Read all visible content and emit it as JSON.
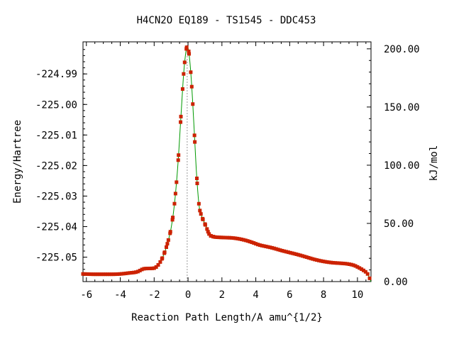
{
  "chart_data": {
    "type": "line",
    "title": "H4CN2O    EQ189 - TS1545 - DDC453",
    "xlabel": "Reaction Path Length/A amu^{1/2}",
    "ylabel": "Energy/Hartree",
    "y2label": "kJ/mol",
    "xlim": [
      -6.2,
      10.8
    ],
    "ylim": [
      -225.058,
      -224.9795
    ],
    "y2lim": [
      0,
      206.0
    ],
    "x_ticks": [
      -6,
      -4,
      -2,
      0,
      2,
      4,
      6,
      8,
      10
    ],
    "y_ticks": [
      -224.99,
      -225.0,
      -225.01,
      -225.02,
      -225.03,
      -225.04,
      -225.05
    ],
    "y2_ticks": [
      0,
      50,
      100,
      150,
      200
    ],
    "x_tick_labels": [
      "-6",
      "-4",
      "-2",
      "0",
      "2",
      "4",
      "6",
      "8",
      "10"
    ],
    "y_tick_labels": [
      "-224.99",
      "-225.00",
      "-225.01",
      "-225.02",
      "-225.03",
      "-225.04",
      "-225.05"
    ],
    "y2_tick_labels": [
      "0.00",
      "50.00",
      "100.00",
      "150.00",
      "200.00"
    ],
    "ts_marker_x": -0.05,
    "grid": false,
    "series": [
      {
        "color": "#009900",
        "marker_color": "#cc2200",
        "x": [
          -6.2,
          -5.5,
          -5.0,
          -4.5,
          -4.0,
          -3.5,
          -3.0,
          -2.6,
          -2.3,
          -2.0,
          -1.8,
          -1.6,
          -1.4,
          -1.2,
          -1.0,
          -0.8,
          -0.6,
          -0.4,
          -0.25,
          -0.1,
          -0.05,
          0.05,
          0.2,
          0.35,
          0.5,
          0.65,
          0.8,
          0.95,
          1.1,
          1.25,
          1.5,
          1.8,
          2.2,
          2.6,
          3.0,
          3.4,
          3.8,
          4.2,
          4.6,
          5.0,
          5.5,
          6.0,
          6.5,
          7.0,
          7.5,
          8.0,
          8.5,
          9.0,
          9.4,
          9.8,
          10.1,
          10.4,
          10.6,
          10.8
        ],
        "y": [
          -225.0555,
          -225.0556,
          -225.0556,
          -225.0556,
          -225.0555,
          -225.0552,
          -225.0548,
          -225.0538,
          -225.0537,
          -225.0536,
          -225.0528,
          -225.0512,
          -225.0487,
          -225.0452,
          -225.0405,
          -225.0325,
          -225.0198,
          -225.0022,
          -224.9893,
          -224.9818,
          -224.981,
          -224.983,
          -224.9925,
          -225.007,
          -225.0225,
          -225.033,
          -225.0365,
          -225.0385,
          -225.0405,
          -225.0425,
          -225.0433,
          -225.0435,
          -225.0436,
          -225.0437,
          -225.044,
          -225.0445,
          -225.0452,
          -225.046,
          -225.0465,
          -225.047,
          -225.0478,
          -225.0485,
          -225.0492,
          -225.05,
          -225.0508,
          -225.0514,
          -225.0518,
          -225.052,
          -225.0522,
          -225.0527,
          -225.0535,
          -225.0545,
          -225.0555,
          -225.058
        ]
      }
    ]
  }
}
